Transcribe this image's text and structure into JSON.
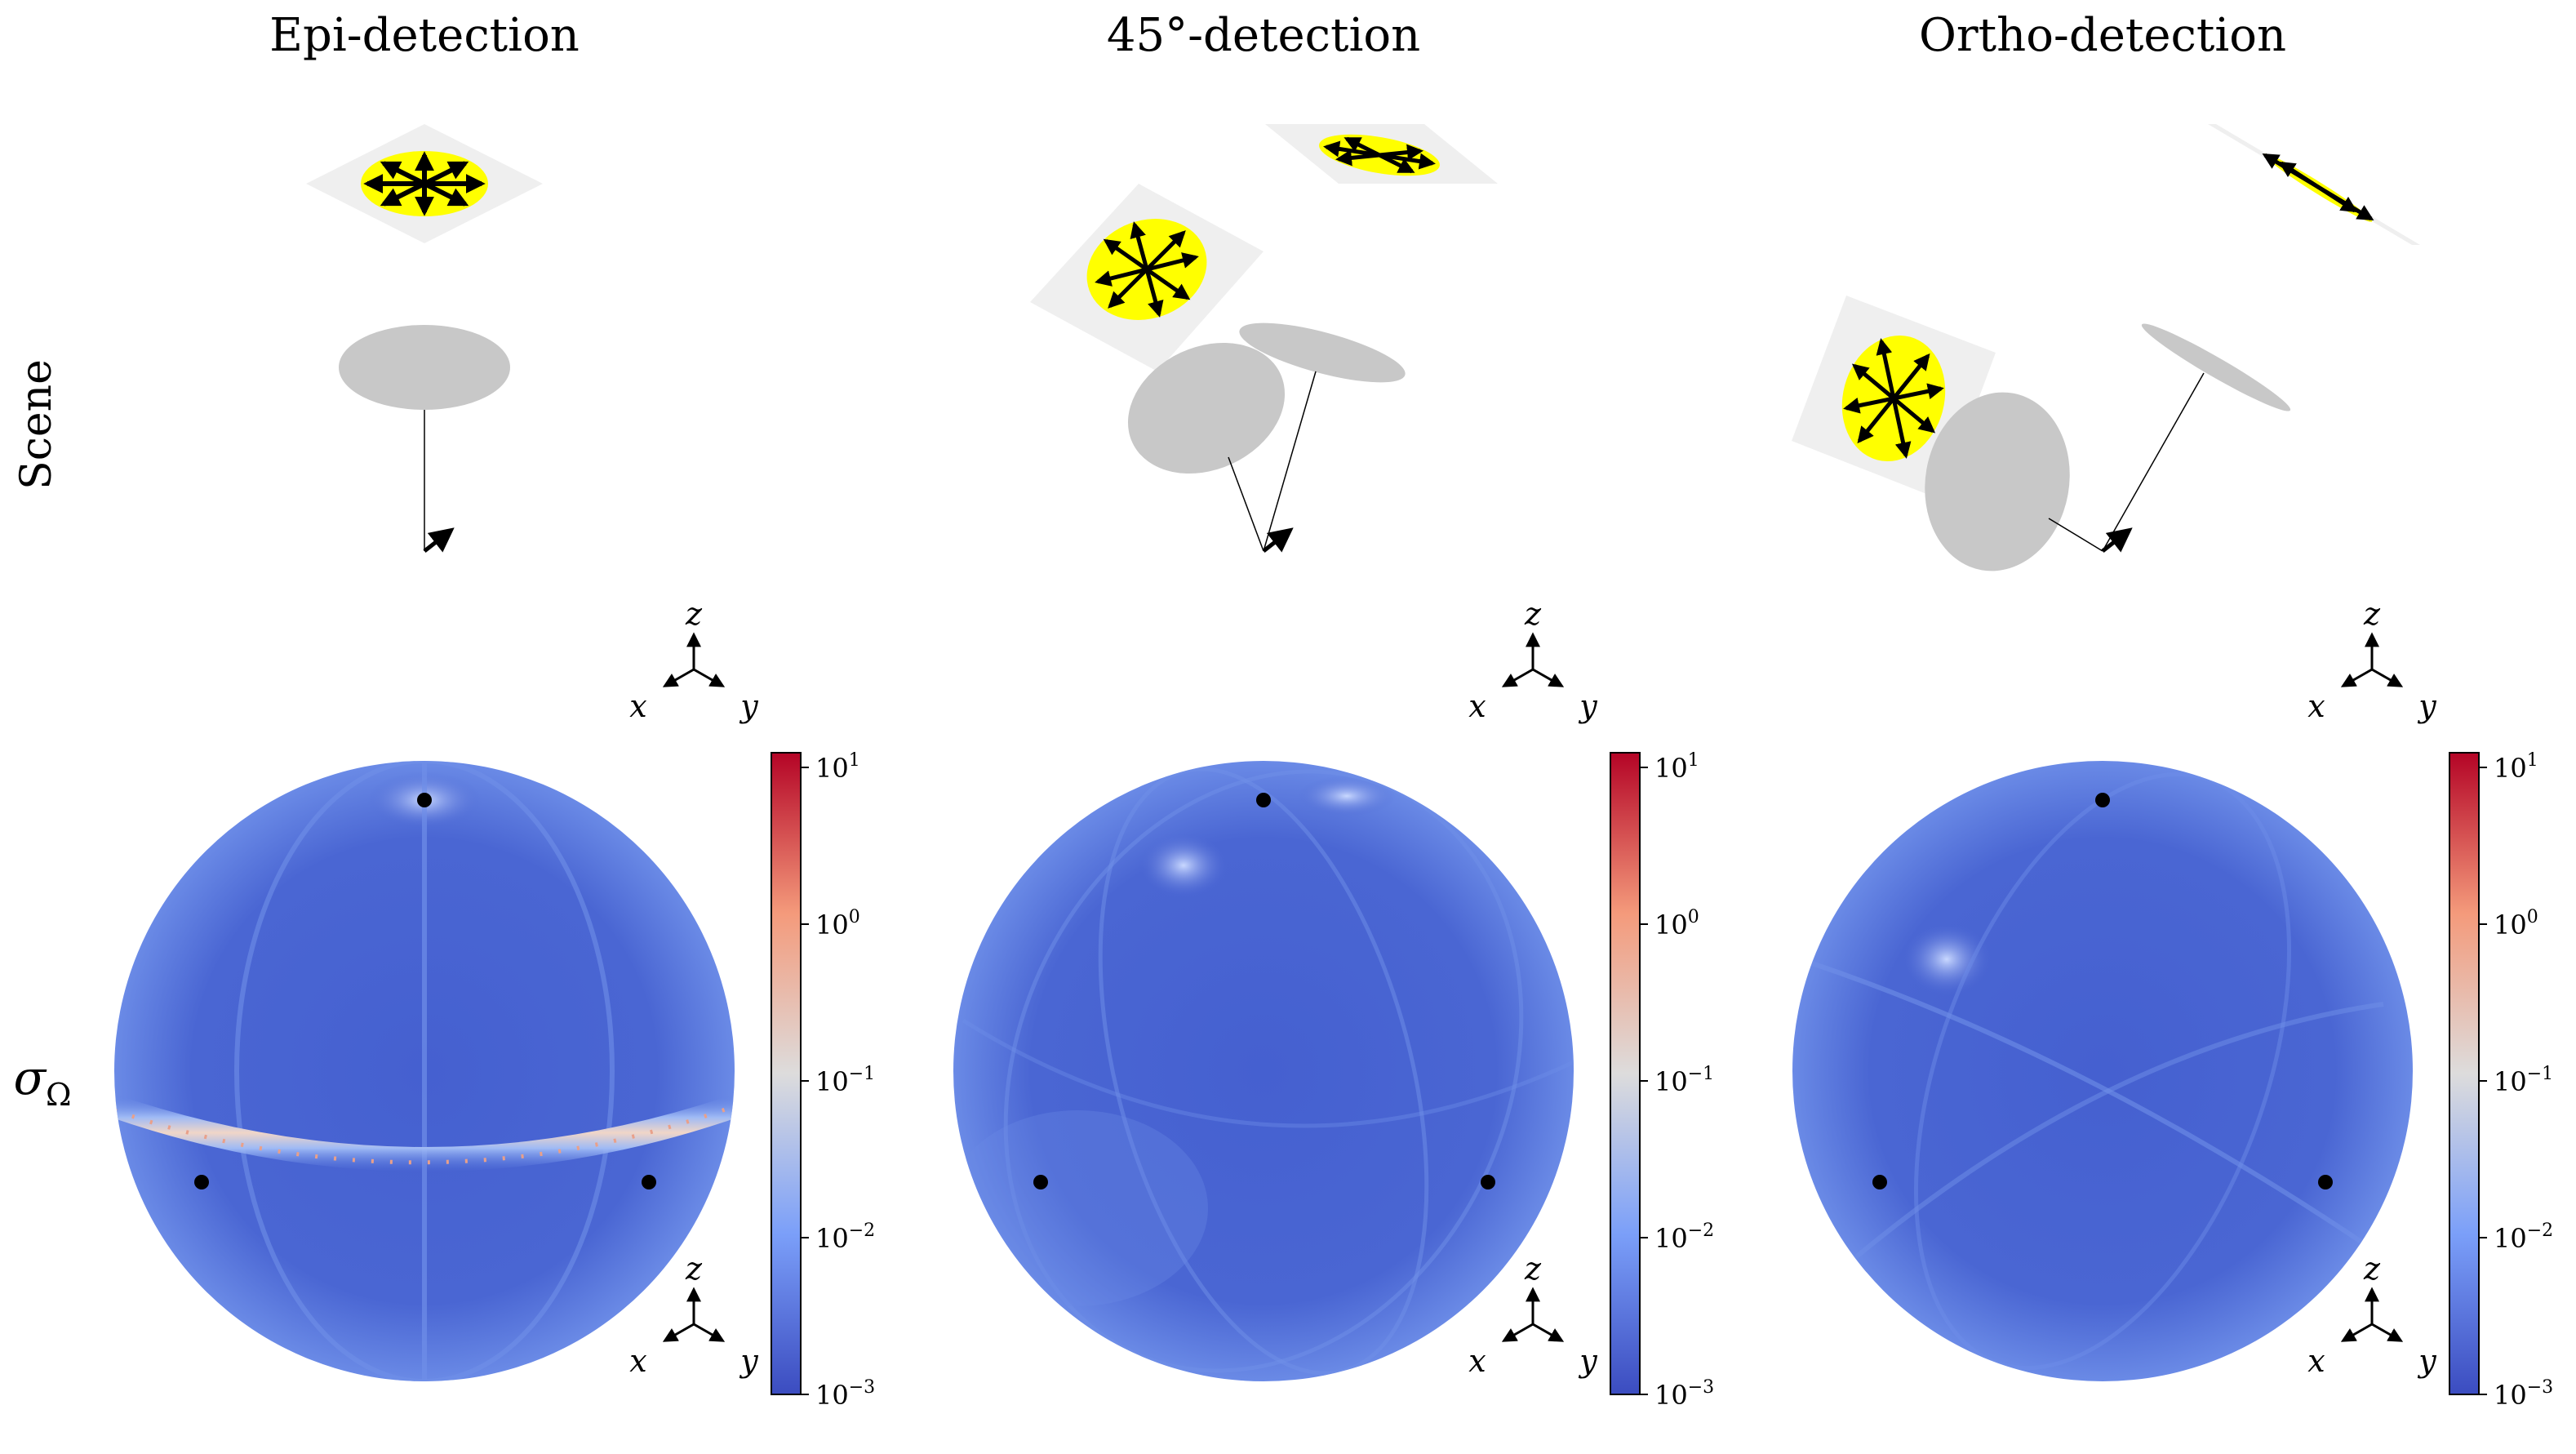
{
  "figure": {
    "row_labels": {
      "scene": "Scene",
      "sigma": "σ"
    },
    "sigma_subscript": "Ω",
    "columns": [
      {
        "title": "Epi-detection"
      },
      {
        "title": "45°-detection"
      },
      {
        "title": "Ortho-detection"
      }
    ],
    "axis_triad": {
      "x": "x",
      "y": "y",
      "z": "z"
    },
    "colorbar": {
      "scale": "log",
      "colormap": "coolwarm",
      "tick_base": "10",
      "ticks": [
        {
          "exp": "1"
        },
        {
          "exp": "0"
        },
        {
          "exp": "−1"
        },
        {
          "exp": "−2"
        },
        {
          "exp": "−3"
        }
      ]
    },
    "colors": {
      "sphere_low": "#3f56c9",
      "sphere_high": "#b40426",
      "sample_yellow": "#ffff00",
      "plane_gray": "#efefef",
      "lens_gray": "#c8c8c8"
    }
  }
}
